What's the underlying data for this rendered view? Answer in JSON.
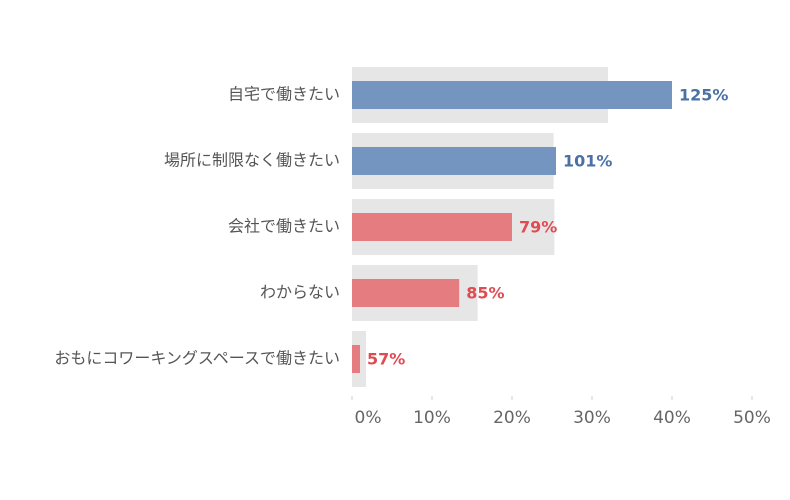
{
  "chart_data": {
    "type": "bullet",
    "categories": [
      "自宅で働きたい",
      "場所に制限なく働きたい",
      "会社で働きたい",
      "わからない",
      "おもにコワーキングスペースで働きたい"
    ],
    "values": [
      40,
      25.5,
      20,
      13.4,
      1
    ],
    "targets": [
      32,
      25.2,
      25.3,
      15.7,
      1.75
    ],
    "colors": [
      "#7495bf",
      "#7495bf",
      "#e57c80",
      "#e57c80",
      "#e57c80"
    ],
    "label_colors": [
      "#4a70a6",
      "#4a70a6",
      "#e04b52",
      "#e04b52",
      "#e04b52"
    ],
    "target_color": "#e6e6e6",
    "ratios": {
      "values": [
        125,
        101,
        79,
        85,
        57
      ],
      "value_labels": [
        "125%",
        "101%",
        "79%",
        "85%",
        "57%"
      ]
    },
    "xlim": [
      0,
      50
    ],
    "xticks": [
      {
        "value": 0,
        "label": "0%"
      },
      {
        "value": 10,
        "label": "10%"
      },
      {
        "value": 20,
        "label": "20%"
      },
      {
        "value": 30,
        "label": "30%"
      },
      {
        "value": 40,
        "label": "40%"
      },
      {
        "value": 50,
        "label": "50%"
      }
    ]
  }
}
